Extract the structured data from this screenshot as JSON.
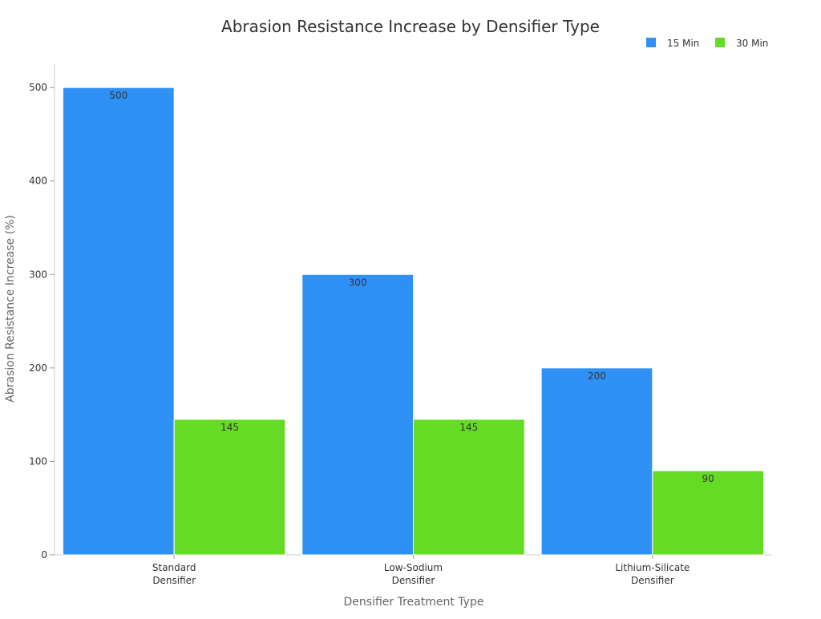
{
  "chart_data": {
    "type": "bar",
    "title": "Abrasion Resistance Increase by Densifier Type",
    "xlabel": "Densifier Treatment Type",
    "ylabel": "Abrasion Resistance Increase (%)",
    "categories": [
      [
        "Standard",
        "Densifier"
      ],
      [
        "Low-Sodium",
        "Densifier"
      ],
      [
        "Lithium-Silicate",
        "Densifier"
      ]
    ],
    "series": [
      {
        "name": "15 Min",
        "color": "#2f91f6",
        "values": [
          500,
          300,
          200
        ]
      },
      {
        "name": "30 Min",
        "color": "#66db26",
        "values": [
          145,
          145,
          90
        ]
      }
    ],
    "ylim": [
      0,
      525
    ],
    "yticks": [
      0,
      100,
      200,
      300,
      400,
      500
    ],
    "grid": false,
    "legend_position": "top-right",
    "data_labels": true
  }
}
